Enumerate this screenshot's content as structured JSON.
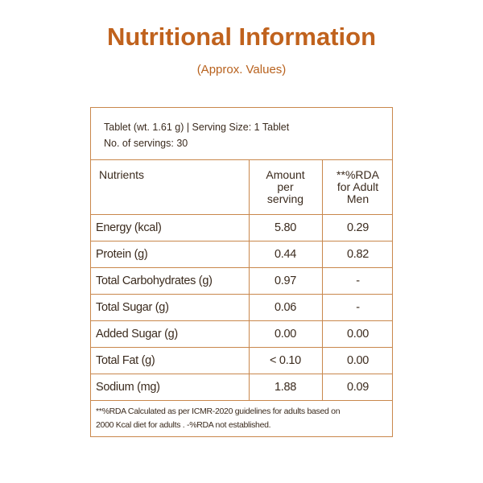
{
  "header": {
    "title": "Nutritional Information",
    "subtitle": "(Approx. Values)"
  },
  "table": {
    "info": [
      "Tablet (wt. 1.61 g) | Serving Size: 1 Tablet",
      "No. of servings: 30"
    ],
    "columns": [
      [
        "Nutrients"
      ],
      [
        "Amount",
        "per",
        "serving"
      ],
      [
        "**%RDA",
        "for Adult",
        "Men"
      ]
    ],
    "rows": [
      [
        "Energy (kcal)",
        "5.80",
        "0.29"
      ],
      [
        "Protein (g)",
        "0.44",
        "0.82"
      ],
      [
        "Total Carbohydrates (g)",
        "0.97",
        "-"
      ],
      [
        "Total Sugar (g)",
        "0.06",
        "-"
      ],
      [
        "Added Sugar (g)",
        "0.00",
        "0.00"
      ],
      [
        "Total Fat (g)",
        "< 0.10",
        "0.00"
      ],
      [
        "Sodium (mg)",
        "1.88",
        "0.09"
      ]
    ],
    "footnote": [
      "**%RDA Calculated as per ICMR-2020 guidelines for adults based on",
      "2000 Kcal diet for adults . -%RDA not established."
    ]
  }
}
